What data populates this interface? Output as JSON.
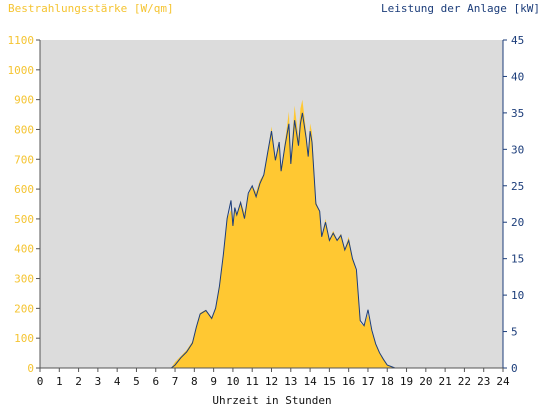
{
  "chart_data": {
    "type": "area",
    "title_left": "Bestrahlungsstärke [W/qm]",
    "title_right": "Leistung der Anlage [kW]",
    "xlabel": "Uhrzeit in Stunden",
    "x_ticks": [
      "0",
      "1",
      "2",
      "3",
      "4",
      "5",
      "6",
      "7",
      "8",
      "9",
      "10",
      "11",
      "12",
      "13",
      "14",
      "15",
      "16",
      "17",
      "18",
      "19",
      "20",
      "21",
      "22",
      "23",
      "24"
    ],
    "xlim": [
      0,
      24
    ],
    "ylim_left": [
      0,
      1100
    ],
    "y_ticks_left": [
      "0",
      "100",
      "200",
      "300",
      "400",
      "500",
      "600",
      "700",
      "800",
      "900",
      "1000",
      "1100"
    ],
    "ylim_right": [
      0,
      45
    ],
    "y_ticks_right": [
      "0",
      "5",
      "10",
      "15",
      "20",
      "25",
      "30",
      "35",
      "40",
      "45"
    ],
    "grid": false,
    "colors": {
      "irradiance": "#ffc832",
      "power": "#1c3d7a",
      "plot_bg": "#dcdcdc",
      "left_axis_text": "#f5c431",
      "right_axis_text": "#1c3d7a"
    },
    "series": [
      {
        "axis": "left",
        "x": [
          0,
          6.8,
          7.0,
          7.3,
          7.6,
          7.9,
          8.1,
          8.3,
          8.6,
          8.9,
          9.1,
          9.3,
          9.5,
          9.7,
          9.9,
          10.0,
          10.1,
          10.2,
          10.4,
          10.6,
          10.8,
          11.0,
          11.2,
          11.4,
          11.6,
          11.8,
          12.0,
          12.2,
          12.4,
          12.5,
          12.7,
          12.9,
          13.0,
          13.2,
          13.4,
          13.5,
          13.6,
          13.8,
          13.9,
          14.0,
          14.1,
          14.3,
          14.5,
          14.6,
          14.8,
          15.0,
          15.2,
          15.4,
          15.6,
          15.8,
          16.0,
          16.2,
          16.4,
          16.6,
          16.8,
          17.0,
          17.2,
          17.4,
          17.6,
          17.8,
          18.0,
          18.2,
          18.4,
          24
        ],
        "values": [
          0,
          0,
          20,
          40,
          60,
          90,
          140,
          185,
          195,
          170,
          200,
          280,
          380,
          500,
          530,
          480,
          540,
          510,
          560,
          520,
          580,
          610,
          590,
          630,
          650,
          720,
          810,
          700,
          760,
          660,
          760,
          860,
          700,
          880,
          770,
          870,
          900,
          790,
          720,
          820,
          790,
          560,
          520,
          440,
          500,
          430,
          460,
          430,
          450,
          400,
          440,
          370,
          320,
          150,
          140,
          180,
          120,
          80,
          50,
          30,
          10,
          5,
          0,
          0
        ]
      },
      {
        "axis": "right",
        "x": [
          0,
          6.8,
          7.0,
          7.3,
          7.6,
          7.9,
          8.1,
          8.3,
          8.6,
          8.9,
          9.1,
          9.3,
          9.5,
          9.7,
          9.9,
          10.0,
          10.1,
          10.2,
          10.4,
          10.6,
          10.8,
          11.0,
          11.2,
          11.4,
          11.6,
          11.8,
          12.0,
          12.2,
          12.4,
          12.5,
          12.7,
          12.9,
          13.0,
          13.2,
          13.4,
          13.5,
          13.6,
          13.8,
          13.9,
          14.0,
          14.1,
          14.3,
          14.5,
          14.6,
          14.8,
          15.0,
          15.2,
          15.4,
          15.6,
          15.8,
          16.0,
          16.2,
          16.4,
          16.6,
          16.8,
          17.0,
          17.2,
          17.4,
          17.6,
          17.8,
          18.0,
          18.2,
          18.4,
          24
        ],
        "values": [
          0,
          0,
          0.4,
          1.4,
          2.2,
          3.4,
          5.6,
          7.4,
          7.9,
          6.8,
          8.2,
          11.2,
          15.5,
          20.5,
          23.0,
          19.5,
          22.0,
          21.0,
          22.7,
          20.5,
          24.0,
          25.0,
          23.5,
          25.3,
          26.5,
          29.5,
          32.5,
          28.5,
          31.0,
          27.0,
          30.5,
          33.5,
          28.0,
          34.0,
          30.5,
          33.5,
          35.0,
          31.5,
          29.0,
          32.5,
          31.0,
          22.5,
          21.5,
          18.0,
          20.0,
          17.5,
          18.5,
          17.5,
          18.2,
          16.2,
          17.5,
          15.0,
          13.5,
          6.5,
          5.8,
          8.0,
          5.2,
          3.3,
          2.1,
          1.2,
          0.4,
          0.2,
          0,
          0
        ]
      }
    ]
  }
}
